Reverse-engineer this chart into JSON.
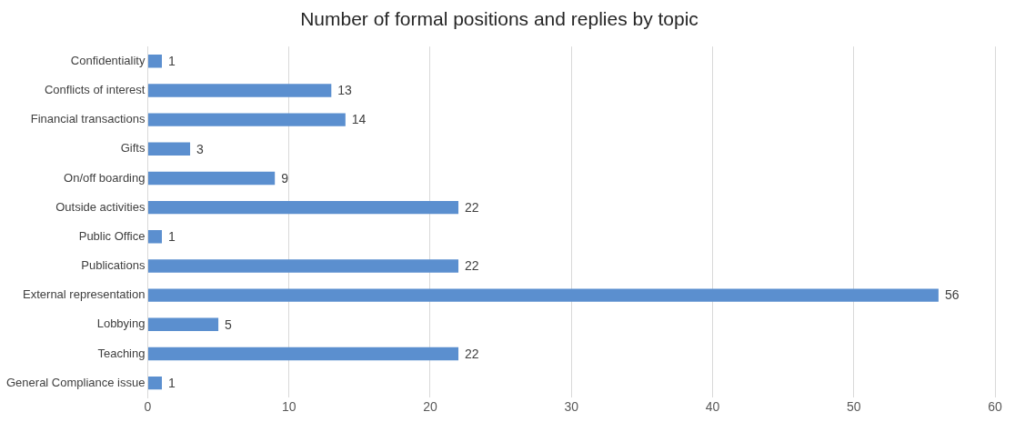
{
  "chart_data": {
    "type": "bar",
    "orientation": "horizontal",
    "title": "Number of formal positions and replies by topic",
    "categories": [
      "Confidentiality",
      "Conflicts of interest",
      "Financial transactions",
      "Gifts",
      "On/off boarding",
      "Outside activities",
      "Public Office",
      "Publications",
      "External representation",
      "Lobbying",
      "Teaching",
      "General Compliance issue"
    ],
    "values": [
      1,
      13,
      14,
      3,
      9,
      22,
      1,
      22,
      56,
      5,
      22,
      1
    ],
    "color": "#5b8fcf",
    "xlim": [
      0,
      60
    ],
    "xticks": [
      0,
      10,
      20,
      30,
      40,
      50,
      60
    ],
    "grid": "x",
    "data_labels": true,
    "legend": false
  }
}
